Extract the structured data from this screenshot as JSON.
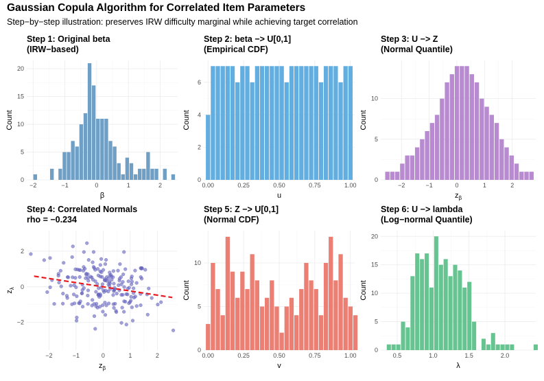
{
  "title": "Gaussian Copula Algorithm for Correlated Item Parameters",
  "subtitle": "Step−by−step illustration: preserves IRW difficulty marginal while achieving target correlation",
  "chart_data": [
    {
      "type": "bar",
      "title_lines": [
        "Step 1: Original beta",
        "(IRW−based)"
      ],
      "xlabel": "β",
      "ylabel": "Count",
      "color": "#6f9fc5",
      "xlim": [
        -2.2,
        2.55
      ],
      "ylim": [
        0,
        21.5
      ],
      "xticks": [
        -2,
        -1,
        0,
        1,
        2
      ],
      "xticklabels": [
        "−2",
        "−1",
        "0",
        "1",
        "2"
      ],
      "yticks": [
        0,
        5,
        10,
        15,
        20
      ],
      "yticklabels": [
        "0",
        "5",
        "10",
        "15",
        "20"
      ],
      "bin_start": -2.0,
      "binwidth": 0.1316,
      "counts": [
        1,
        0,
        0,
        0,
        2,
        0,
        2,
        5,
        5,
        7,
        6,
        10,
        12,
        21,
        17,
        11,
        11,
        11,
        7,
        6,
        3,
        1,
        4,
        3,
        1,
        2,
        2,
        5,
        2,
        2,
        0,
        2,
        0,
        1
      ]
    },
    {
      "type": "bar",
      "title_lines": [
        "Step 2: beta −> U[0,1]",
        "(Empirical CDF)"
      ],
      "xlabel": "u",
      "ylabel": "Count",
      "color": "#62aee0",
      "xlim": [
        -0.03,
        1.03
      ],
      "ylim": [
        0,
        7.35
      ],
      "xticks": [
        0,
        0.25,
        0.5,
        0.75,
        1.0
      ],
      "xticklabels": [
        "0.00",
        "0.25",
        "0.50",
        "0.75",
        "1.00"
      ],
      "yticks": [
        0,
        2,
        4,
        6
      ],
      "yticklabels": [
        "0",
        "2",
        "4",
        "6"
      ],
      "bin_start": -0.0172,
      "binwidth": 0.0345,
      "counts": [
        4,
        7,
        7,
        7,
        7,
        7,
        6,
        7,
        7,
        6,
        7,
        7,
        7,
        7,
        7,
        7,
        6,
        7,
        7,
        7,
        7,
        7,
        7,
        6,
        7,
        7,
        7,
        6,
        7,
        7
      ]
    },
    {
      "type": "bar",
      "title_lines": [
        "Step 3: U −> Z",
        "(Normal Quantile)"
      ],
      "xlabel": "z_β",
      "ylabel": "Count",
      "color": "#b88bd0",
      "xlim": [
        -2.75,
        2.85
      ],
      "ylim": [
        0,
        14.7
      ],
      "xticks": [
        -2,
        -1,
        0,
        1,
        2
      ],
      "xticklabels": [
        "−2",
        "−1",
        "0",
        "1",
        "2"
      ],
      "yticks": [
        0,
        5,
        10
      ],
      "yticklabels": [
        "0",
        "5",
        "10"
      ],
      "bin_start": -2.6,
      "binwidth": 0.1795,
      "counts": [
        1,
        1,
        1,
        2,
        3,
        3,
        4,
        5,
        6,
        7,
        8,
        10,
        12,
        13,
        14,
        14,
        14,
        13,
        12,
        10,
        9,
        8,
        7,
        5,
        4,
        3,
        2,
        1,
        1,
        1
      ]
    },
    {
      "type": "scatter",
      "title_lines": [
        "Step 4: Correlated Normals",
        "rho = −0.234"
      ],
      "xlabel": "z_β",
      "ylabel": "z_λ",
      "color": "#6463bd",
      "fit_color": "#e8191f",
      "fit_slope": -0.234,
      "fit_intercept": 0.0,
      "fit_range": [
        -2.55,
        2.55
      ],
      "xlim": [
        -2.82,
        2.75
      ],
      "ylim": [
        -3.55,
        3.15
      ],
      "xticks": [
        -2,
        -1,
        0,
        1,
        2
      ],
      "xticklabels": [
        "−2",
        "−1",
        "0",
        "1",
        "2"
      ],
      "yticks": [
        -2,
        0,
        2
      ],
      "yticklabels": [
        "−2",
        "0",
        "2"
      ]
    },
    {
      "type": "bar",
      "title_lines": [
        "Step 5: Z −> U[0,1]",
        "(Normal CDF)"
      ],
      "xlabel": "v",
      "ylabel": "Count",
      "color": "#ec7f73",
      "xlim": [
        -0.03,
        1.03
      ],
      "ylim": [
        0,
        13.7
      ],
      "xticks": [
        0,
        0.25,
        0.5,
        0.75,
        1.0
      ],
      "xticklabels": [
        "0.00",
        "0.25",
        "0.50",
        "0.75",
        "1.00"
      ],
      "yticks": [
        0,
        5,
        10
      ],
      "yticklabels": [
        "0",
        "5",
        "10"
      ],
      "bin_start": -0.0172,
      "binwidth": 0.0345,
      "counts": [
        3,
        10,
        7,
        4,
        13,
        9,
        6,
        9,
        7,
        11,
        8,
        5,
        6,
        8,
        5,
        2,
        5,
        6,
        4,
        7,
        10,
        8,
        7,
        4,
        10,
        13,
        8,
        11,
        6,
        5,
        4
      ]
    },
    {
      "type": "bar",
      "title_lines": [
        "Step 6: U −> lambda",
        "(Log−normal Quantile)"
      ],
      "xlabel": "λ",
      "ylabel": "Count",
      "color": "#66c491",
      "xlim": [
        0.27,
        2.43
      ],
      "ylim": [
        0,
        21
      ],
      "xticks": [
        0.5,
        1.0,
        1.5,
        2.0
      ],
      "xticklabels": [
        "0.5",
        "1.0",
        "1.5",
        "2.0"
      ],
      "yticks": [
        0,
        5,
        10,
        15,
        20
      ],
      "yticklabels": [
        "0",
        "5",
        "10",
        "15",
        "20"
      ],
      "bin_start": 0.35,
      "binwidth": 0.066,
      "counts": [
        1,
        1,
        1,
        5,
        4,
        13,
        17,
        16,
        17,
        11,
        20,
        15,
        16,
        13,
        15,
        14,
        11,
        12,
        5,
        0,
        2,
        1,
        3,
        1,
        1,
        1,
        1,
        0,
        0,
        0,
        0,
        1
      ]
    }
  ]
}
